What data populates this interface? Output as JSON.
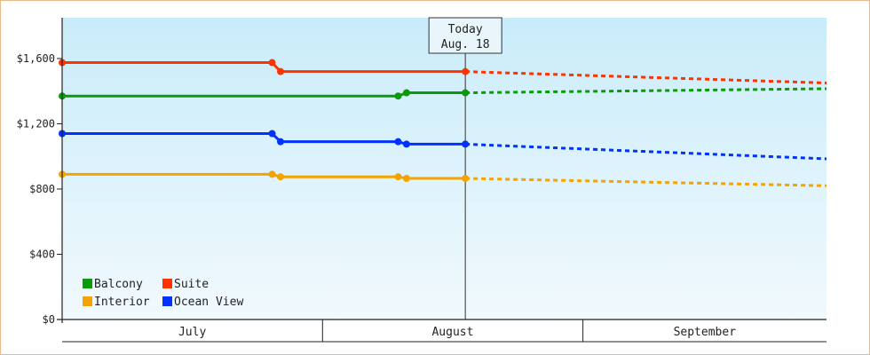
{
  "chart_data": {
    "type": "line",
    "today_label": "Today",
    "today_date": "Aug. 18",
    "today": "08-18",
    "x_range": [
      "07-01",
      "09-30"
    ],
    "ylim": [
      0,
      1850
    ],
    "y_ticks": [
      {
        "value": 0,
        "label": "$0"
      },
      {
        "value": 400,
        "label": "$400"
      },
      {
        "value": 800,
        "label": "$800"
      },
      {
        "value": 1200,
        "label": "$1,200"
      },
      {
        "value": 1600,
        "label": "$1,600"
      }
    ],
    "months": [
      {
        "label": "July",
        "start": "07-01",
        "end": "07-31"
      },
      {
        "label": "August",
        "start": "08-01",
        "end": "08-31"
      },
      {
        "label": "September",
        "start": "09-01",
        "end": "09-30"
      }
    ],
    "grid": false,
    "legend_position": "bottom-left",
    "series": [
      {
        "name": "Balcony",
        "color": "#0a9a0a",
        "actual": [
          {
            "x": "07-01",
            "y": 1370
          },
          {
            "x": "08-10",
            "y": 1370
          },
          {
            "x": "08-11",
            "y": 1390
          },
          {
            "x": "08-18",
            "y": 1390
          }
        ],
        "forecast": [
          {
            "x": "08-18",
            "y": 1390
          },
          {
            "x": "09-30",
            "y": 1415
          }
        ]
      },
      {
        "name": "Suite",
        "color": "#ff3300",
        "actual": [
          {
            "x": "07-01",
            "y": 1575
          },
          {
            "x": "07-26",
            "y": 1575
          },
          {
            "x": "07-27",
            "y": 1520
          },
          {
            "x": "08-18",
            "y": 1520
          }
        ],
        "forecast": [
          {
            "x": "08-18",
            "y": 1520
          },
          {
            "x": "09-30",
            "y": 1450
          }
        ]
      },
      {
        "name": "Interior",
        "color": "#f5a300",
        "actual": [
          {
            "x": "07-01",
            "y": 890
          },
          {
            "x": "07-26",
            "y": 890
          },
          {
            "x": "07-27",
            "y": 875
          },
          {
            "x": "08-10",
            "y": 875
          },
          {
            "x": "08-11",
            "y": 865
          },
          {
            "x": "08-18",
            "y": 865
          }
        ],
        "forecast": [
          {
            "x": "08-18",
            "y": 865
          },
          {
            "x": "09-30",
            "y": 820
          }
        ]
      },
      {
        "name": "Ocean View",
        "color": "#0033ff",
        "actual": [
          {
            "x": "07-01",
            "y": 1140
          },
          {
            "x": "07-26",
            "y": 1140
          },
          {
            "x": "07-27",
            "y": 1090
          },
          {
            "x": "08-10",
            "y": 1090
          },
          {
            "x": "08-11",
            "y": 1075
          },
          {
            "x": "08-18",
            "y": 1075
          }
        ],
        "forecast": [
          {
            "x": "08-18",
            "y": 1075
          },
          {
            "x": "09-30",
            "y": 985
          }
        ]
      }
    ]
  }
}
